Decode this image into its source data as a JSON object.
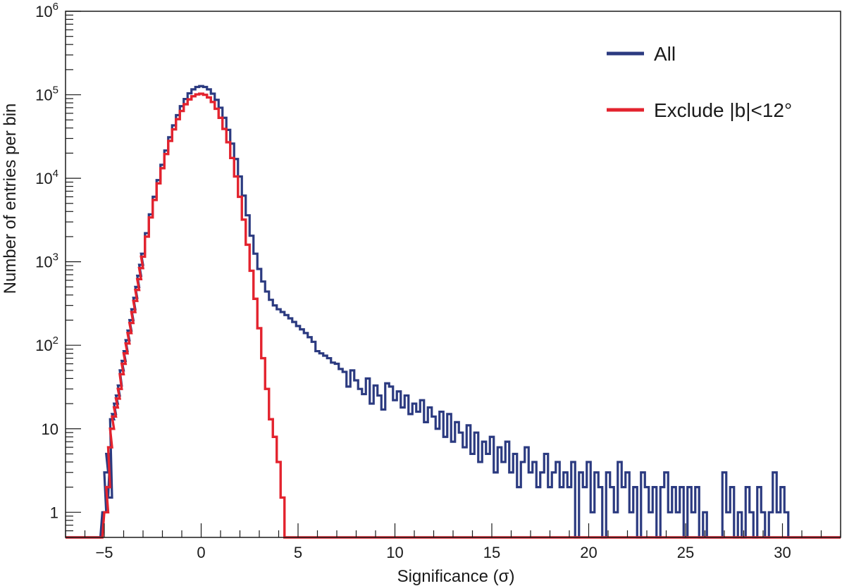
{
  "chart_data": {
    "type": "histogram",
    "title": "",
    "xlabel": "Significance (σ)",
    "ylabel": "Number of entries per bin",
    "x_scale": "linear",
    "y_scale": "log",
    "xlim": [
      -7,
      33
    ],
    "ylim": [
      0.5,
      1000000
    ],
    "x_ticks": [
      -5,
      0,
      5,
      10,
      15,
      20,
      25,
      30
    ],
    "x_tick_labels": [
      "−5",
      "0",
      "5",
      "10",
      "15",
      "20",
      "25",
      "30"
    ],
    "y_ticks": [
      1,
      10,
      100,
      1000,
      10000,
      100000,
      1000000
    ],
    "y_tick_labels": [
      {
        "base": "1",
        "exp": ""
      },
      {
        "base": "10",
        "exp": ""
      },
      {
        "base": "10",
        "exp": "2"
      },
      {
        "base": "10",
        "exp": "3"
      },
      {
        "base": "10",
        "exp": "4"
      },
      {
        "base": "10",
        "exp": "5"
      },
      {
        "base": "10",
        "exp": "6"
      }
    ],
    "grid": false,
    "legend_position": "top-right",
    "series": [
      {
        "name": "All",
        "color": "#2b3a80",
        "points": [
          [
            -5.3,
            0.5
          ],
          [
            -5.0,
            1
          ],
          [
            -4.9,
            3
          ],
          [
            -4.8,
            5
          ],
          [
            -4.7,
            1.5
          ],
          [
            -4.6,
            13
          ],
          [
            -4.5,
            15
          ],
          [
            -4.4,
            20
          ],
          [
            -4.3,
            25
          ],
          [
            -4.2,
            33
          ],
          [
            -4.1,
            50
          ],
          [
            -4.0,
            65
          ],
          [
            -3.9,
            85
          ],
          [
            -3.8,
            115
          ],
          [
            -3.7,
            150
          ],
          [
            -3.6,
            200
          ],
          [
            -3.5,
            270
          ],
          [
            -3.4,
            370
          ],
          [
            -3.3,
            500
          ],
          [
            -3.2,
            680
          ],
          [
            -3.1,
            920
          ],
          [
            -3.0,
            1250
          ],
          [
            -2.8,
            2200
          ],
          [
            -2.6,
            3700
          ],
          [
            -2.4,
            6000
          ],
          [
            -2.2,
            9500
          ],
          [
            -2.0,
            14500
          ],
          [
            -1.8,
            21500
          ],
          [
            -1.6,
            31000
          ],
          [
            -1.4,
            43000
          ],
          [
            -1.2,
            57000
          ],
          [
            -1.0,
            73000
          ],
          [
            -0.8,
            89000
          ],
          [
            -0.6,
            104000
          ],
          [
            -0.4,
            116000
          ],
          [
            -0.2,
            124000
          ],
          [
            0.0,
            127000
          ],
          [
            0.2,
            124000
          ],
          [
            0.4,
            116000
          ],
          [
            0.6,
            103000
          ],
          [
            0.8,
            87000
          ],
          [
            1.0,
            70000
          ],
          [
            1.2,
            53000
          ],
          [
            1.4,
            38000
          ],
          [
            1.6,
            26000
          ],
          [
            1.8,
            17000
          ],
          [
            2.0,
            10500
          ],
          [
            2.2,
            6200
          ],
          [
            2.4,
            3600
          ],
          [
            2.6,
            2050
          ],
          [
            2.8,
            1250
          ],
          [
            3.0,
            820
          ],
          [
            3.2,
            580
          ],
          [
            3.4,
            440
          ],
          [
            3.6,
            350
          ],
          [
            3.8,
            300
          ],
          [
            4.0,
            270
          ],
          [
            4.2,
            250
          ],
          [
            4.4,
            230
          ],
          [
            4.6,
            210
          ],
          [
            4.8,
            190
          ],
          [
            5.0,
            170
          ],
          [
            5.2,
            155
          ],
          [
            5.4,
            140
          ],
          [
            5.6,
            125
          ],
          [
            5.8,
            110
          ],
          [
            6.0,
            85
          ],
          [
            6.2,
            80
          ],
          [
            6.4,
            75
          ],
          [
            6.6,
            70
          ],
          [
            6.8,
            62
          ],
          [
            7.0,
            60
          ],
          [
            7.2,
            52
          ],
          [
            7.4,
            48
          ],
          [
            7.6,
            32
          ],
          [
            7.8,
            50
          ],
          [
            8.0,
            38
          ],
          [
            8.2,
            30
          ],
          [
            8.4,
            26
          ],
          [
            8.6,
            40
          ],
          [
            8.8,
            20
          ],
          [
            9.0,
            33
          ],
          [
            9.2,
            25
          ],
          [
            9.4,
            17
          ],
          [
            9.6,
            35
          ],
          [
            9.8,
            32
          ],
          [
            10.0,
            22
          ],
          [
            10.2,
            28
          ],
          [
            10.4,
            18
          ],
          [
            10.6,
            25
          ],
          [
            10.8,
            15
          ],
          [
            11.0,
            20
          ],
          [
            11.2,
            16
          ],
          [
            11.4,
            22
          ],
          [
            11.6,
            12
          ],
          [
            11.8,
            18
          ],
          [
            12.0,
            14
          ],
          [
            12.2,
            10
          ],
          [
            12.4,
            16
          ],
          [
            12.6,
            8
          ],
          [
            12.8,
            15
          ],
          [
            13.0,
            7
          ],
          [
            13.2,
            12
          ],
          [
            13.4,
            9
          ],
          [
            13.6,
            6
          ],
          [
            13.8,
            11
          ],
          [
            14.0,
            5
          ],
          [
            14.2,
            9
          ],
          [
            14.4,
            4
          ],
          [
            14.6,
            7
          ],
          [
            14.8,
            5
          ],
          [
            15.0,
            8
          ],
          [
            15.2,
            3
          ],
          [
            15.4,
            6
          ],
          [
            15.6,
            4
          ],
          [
            15.8,
            7
          ],
          [
            16.0,
            3
          ],
          [
            16.2,
            5
          ],
          [
            16.4,
            2
          ],
          [
            16.6,
            4
          ],
          [
            16.8,
            6
          ],
          [
            17.0,
            3
          ],
          [
            17.2,
            4
          ],
          [
            17.4,
            2
          ],
          [
            17.6,
            3
          ],
          [
            17.8,
            5
          ],
          [
            18.0,
            2
          ],
          [
            18.2,
            3
          ],
          [
            18.4,
            4
          ],
          [
            18.6,
            2
          ],
          [
            18.8,
            3
          ],
          [
            19.0,
            2
          ],
          [
            19.2,
            4
          ],
          [
            19.4,
            0.5
          ],
          [
            19.6,
            3
          ],
          [
            19.8,
            2
          ],
          [
            20.0,
            4
          ],
          [
            20.2,
            1
          ],
          [
            20.4,
            3
          ],
          [
            20.6,
            2
          ],
          [
            20.8,
            0.5
          ],
          [
            21.0,
            3
          ],
          [
            21.2,
            2
          ],
          [
            21.4,
            1
          ],
          [
            21.6,
            4
          ],
          [
            21.8,
            2
          ],
          [
            22.0,
            3
          ],
          [
            22.2,
            1
          ],
          [
            22.4,
            2
          ],
          [
            22.6,
            0.5
          ],
          [
            22.8,
            3
          ],
          [
            23.0,
            2
          ],
          [
            23.2,
            1
          ],
          [
            23.4,
            2
          ],
          [
            23.6,
            0.5
          ],
          [
            23.8,
            2
          ],
          [
            24.0,
            3
          ],
          [
            24.2,
            1
          ],
          [
            24.4,
            2
          ],
          [
            24.6,
            1
          ],
          [
            24.8,
            2
          ],
          [
            25.0,
            0.5
          ],
          [
            25.2,
            2
          ],
          [
            25.4,
            1
          ],
          [
            25.6,
            2
          ],
          [
            25.8,
            0.5
          ],
          [
            26.0,
            1
          ],
          [
            26.2,
            0.5
          ],
          [
            26.4,
            0.5
          ],
          [
            26.6,
            0.5
          ],
          [
            26.8,
            0.5
          ],
          [
            27.0,
            3
          ],
          [
            27.2,
            1
          ],
          [
            27.4,
            2
          ],
          [
            27.6,
            0.5
          ],
          [
            27.8,
            1
          ],
          [
            28.0,
            0.5
          ],
          [
            28.2,
            2
          ],
          [
            28.4,
            1
          ],
          [
            28.6,
            0.5
          ],
          [
            28.8,
            2
          ],
          [
            29.0,
            1
          ],
          [
            29.2,
            0.5
          ],
          [
            29.4,
            1
          ],
          [
            29.6,
            3
          ],
          [
            29.8,
            1
          ],
          [
            30.0,
            2
          ],
          [
            30.2,
            1
          ],
          [
            30.4,
            0.5
          ]
        ]
      },
      {
        "name": "Exclude |b|<12°",
        "color": "#e3232e",
        "points": [
          [
            -5.2,
            0.5
          ],
          [
            -4.9,
            1
          ],
          [
            -4.8,
            2
          ],
          [
            -4.7,
            6
          ],
          [
            -4.6,
            10
          ],
          [
            -4.5,
            14
          ],
          [
            -4.4,
            18
          ],
          [
            -4.3,
            23
          ],
          [
            -4.2,
            30
          ],
          [
            -4.1,
            45
          ],
          [
            -4.0,
            60
          ],
          [
            -3.9,
            80
          ],
          [
            -3.8,
            105
          ],
          [
            -3.7,
            140
          ],
          [
            -3.6,
            185
          ],
          [
            -3.5,
            250
          ],
          [
            -3.4,
            340
          ],
          [
            -3.3,
            460
          ],
          [
            -3.2,
            620
          ],
          [
            -3.1,
            840
          ],
          [
            -3.0,
            1150
          ],
          [
            -2.8,
            2000
          ],
          [
            -2.6,
            3400
          ],
          [
            -2.4,
            5500
          ],
          [
            -2.2,
            8700
          ],
          [
            -2.0,
            13200
          ],
          [
            -1.8,
            19500
          ],
          [
            -1.6,
            28000
          ],
          [
            -1.4,
            38500
          ],
          [
            -1.2,
            51000
          ],
          [
            -1.0,
            64000
          ],
          [
            -0.8,
            77000
          ],
          [
            -0.6,
            88000
          ],
          [
            -0.4,
            96000
          ],
          [
            -0.2,
            101000
          ],
          [
            0.0,
            103000
          ],
          [
            0.2,
            100000
          ],
          [
            0.4,
            93000
          ],
          [
            0.6,
            82000
          ],
          [
            0.8,
            68000
          ],
          [
            1.0,
            53000
          ],
          [
            1.2,
            39000
          ],
          [
            1.4,
            27000
          ],
          [
            1.6,
            17500
          ],
          [
            1.8,
            10500
          ],
          [
            2.0,
            6000
          ],
          [
            2.2,
            3200
          ],
          [
            2.4,
            1600
          ],
          [
            2.6,
            780
          ],
          [
            2.8,
            360
          ],
          [
            3.0,
            160
          ],
          [
            3.2,
            70
          ],
          [
            3.4,
            30
          ],
          [
            3.6,
            13
          ],
          [
            3.8,
            8
          ],
          [
            4.0,
            4
          ],
          [
            4.2,
            1.5
          ],
          [
            4.4,
            0.5
          ]
        ]
      }
    ]
  },
  "legend": {
    "items": [
      {
        "label": "All",
        "color": "#2b3a80"
      },
      {
        "label": "Exclude |b|<12°",
        "color": "#e3232e"
      }
    ]
  }
}
